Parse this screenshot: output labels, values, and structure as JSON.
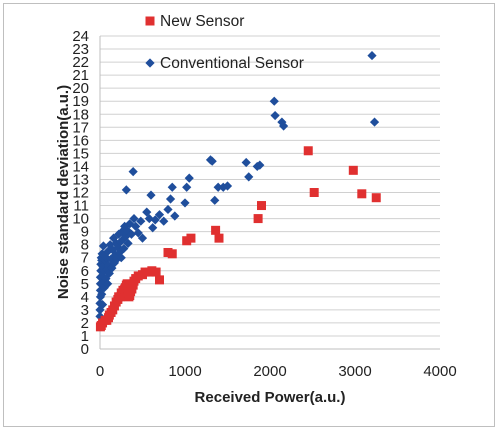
{
  "chart_data": {
    "type": "scatter",
    "xlabel": "Received Power(a.u.)",
    "ylabel": "Noise standard deviation(a.u.)",
    "xlim": [
      0,
      4000
    ],
    "ylim": [
      0,
      24
    ],
    "xticks": [
      "0",
      "1000",
      "2000",
      "3000",
      "4000"
    ],
    "yticks": [
      "0",
      "1",
      "2",
      "3",
      "4",
      "5",
      "6",
      "7",
      "8",
      "9",
      "10",
      "11",
      "12",
      "13",
      "14",
      "15",
      "16",
      "17",
      "18",
      "19",
      "20",
      "21",
      "22",
      "23",
      "24"
    ],
    "grid": "horizontal",
    "legend_position": "top-left",
    "series": [
      {
        "name": "New Sensor",
        "marker": "square",
        "color": "#e03030",
        "points": [
          [
            5,
            1.7
          ],
          [
            15,
            1.8
          ],
          [
            30,
            2.0
          ],
          [
            60,
            2.2
          ],
          [
            80,
            2.2
          ],
          [
            100,
            2.4
          ],
          [
            110,
            2.6
          ],
          [
            130,
            2.8
          ],
          [
            150,
            3.0
          ],
          [
            170,
            3.3
          ],
          [
            190,
            3.6
          ],
          [
            210,
            3.8
          ],
          [
            220,
            4.0
          ],
          [
            240,
            4.0
          ],
          [
            250,
            4.3
          ],
          [
            270,
            4.5
          ],
          [
            290,
            4.6
          ],
          [
            300,
            4.7
          ],
          [
            310,
            4.9
          ],
          [
            320,
            5.0
          ],
          [
            330,
            4.3
          ],
          [
            340,
            4.0
          ],
          [
            350,
            4.1
          ],
          [
            360,
            4.4
          ],
          [
            375,
            4.6
          ],
          [
            390,
            4.9
          ],
          [
            400,
            5.2
          ],
          [
            420,
            5.4
          ],
          [
            450,
            5.6
          ],
          [
            500,
            5.7
          ],
          [
            530,
            5.9
          ],
          [
            580,
            5.9
          ],
          [
            610,
            6.0
          ],
          [
            660,
            5.9
          ],
          [
            700,
            5.3
          ],
          [
            800,
            7.4
          ],
          [
            850,
            7.3
          ],
          [
            1020,
            8.3
          ],
          [
            1070,
            8.5
          ],
          [
            1360,
            9.1
          ],
          [
            1400,
            8.5
          ],
          [
            1860,
            10.0
          ],
          [
            1900,
            11.0
          ],
          [
            2450,
            15.2
          ],
          [
            2520,
            12.0
          ],
          [
            2980,
            13.7
          ],
          [
            3080,
            11.9
          ],
          [
            3250,
            11.6
          ]
        ]
      },
      {
        "name": "Conventional Sensor",
        "marker": "diamond",
        "color": "#1f4e9c",
        "points": [
          [
            0,
            2.5
          ],
          [
            0,
            3.0
          ],
          [
            0,
            3.5
          ],
          [
            5,
            4.0
          ],
          [
            5,
            4.5
          ],
          [
            5,
            5.0
          ],
          [
            5,
            5.5
          ],
          [
            10,
            6.0
          ],
          [
            10,
            6.5
          ],
          [
            15,
            7.0
          ],
          [
            20,
            4.2
          ],
          [
            20,
            5.0
          ],
          [
            20,
            6.8
          ],
          [
            25,
            7.3
          ],
          [
            30,
            3.4
          ],
          [
            30,
            5.6
          ],
          [
            35,
            6.3
          ],
          [
            40,
            7.9
          ],
          [
            50,
            4.7
          ],
          [
            50,
            6.0
          ],
          [
            55,
            5.2
          ],
          [
            60,
            6.8
          ],
          [
            70,
            5.4
          ],
          [
            75,
            7.0
          ],
          [
            80,
            6.1
          ],
          [
            90,
            5.0
          ],
          [
            95,
            7.5
          ],
          [
            100,
            6.4
          ],
          [
            110,
            5.8
          ],
          [
            120,
            8.0
          ],
          [
            130,
            6.9
          ],
          [
            140,
            6.2
          ],
          [
            150,
            7.6
          ],
          [
            160,
            8.5
          ],
          [
            170,
            6.6
          ],
          [
            180,
            7.2
          ],
          [
            190,
            8.1
          ],
          [
            200,
            6.9
          ],
          [
            210,
            7.8
          ],
          [
            220,
            8.8
          ],
          [
            230,
            7.4
          ],
          [
            240,
            8.2
          ],
          [
            250,
            7.0
          ],
          [
            260,
            9.0
          ],
          [
            270,
            8.4
          ],
          [
            280,
            7.7
          ],
          [
            290,
            9.4
          ],
          [
            300,
            8.6
          ],
          [
            310,
            12.2
          ],
          [
            320,
            9.1
          ],
          [
            330,
            8.1
          ],
          [
            350,
            9.6
          ],
          [
            370,
            8.8
          ],
          [
            390,
            13.6
          ],
          [
            400,
            10.0
          ],
          [
            420,
            9.4
          ],
          [
            450,
            8.9
          ],
          [
            480,
            9.8
          ],
          [
            500,
            8.5
          ],
          [
            550,
            10.5
          ],
          [
            580,
            10.0
          ],
          [
            600,
            11.8
          ],
          [
            620,
            9.3
          ],
          [
            650,
            9.9
          ],
          [
            700,
            10.3
          ],
          [
            750,
            9.8
          ],
          [
            800,
            10.7
          ],
          [
            830,
            11.5
          ],
          [
            850,
            12.4
          ],
          [
            880,
            10.2
          ],
          [
            1000,
            11.2
          ],
          [
            1020,
            12.4
          ],
          [
            1050,
            13.1
          ],
          [
            1300,
            14.5
          ],
          [
            1320,
            14.4
          ],
          [
            1350,
            11.4
          ],
          [
            1390,
            12.4
          ],
          [
            1450,
            12.4
          ],
          [
            1500,
            12.5
          ],
          [
            1720,
            14.3
          ],
          [
            1750,
            13.2
          ],
          [
            1850,
            14.0
          ],
          [
            1880,
            14.1
          ],
          [
            2050,
            19.0
          ],
          [
            2060,
            17.9
          ],
          [
            2140,
            17.4
          ],
          [
            2160,
            17.1
          ],
          [
            3200,
            22.5
          ],
          [
            3230,
            17.4
          ]
        ]
      }
    ]
  }
}
